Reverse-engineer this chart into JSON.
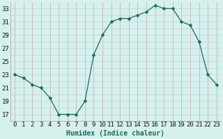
{
  "x": [
    0,
    1,
    2,
    3,
    4,
    5,
    6,
    7,
    8,
    9,
    10,
    11,
    12,
    13,
    14,
    15,
    16,
    17,
    18,
    19,
    20,
    21,
    22,
    23
  ],
  "y": [
    23,
    22.5,
    21.5,
    21,
    19.5,
    17,
    17,
    17,
    19,
    26,
    29,
    31,
    31.5,
    31.5,
    32,
    32.5,
    33.5,
    33,
    33,
    31,
    30.5,
    28,
    23,
    21.5
  ],
  "line_color": "#1a6b5a",
  "marker": "D",
  "marker_size": 2.5,
  "bg_color": "#d6f0ee",
  "grid_color_v": "#c8a8a8",
  "grid_color_h": "#b8d8d8",
  "xlabel": "Humidex (Indice chaleur)",
  "xlabel_fontsize": 7,
  "xlabel_color": "#1a6b5a",
  "ylabel_ticks": [
    17,
    19,
    21,
    23,
    25,
    27,
    29,
    31,
    33
  ],
  "ylim": [
    16.0,
    34.0
  ],
  "xlim": [
    -0.5,
    23.5
  ],
  "tick_fontsize": 6.5
}
